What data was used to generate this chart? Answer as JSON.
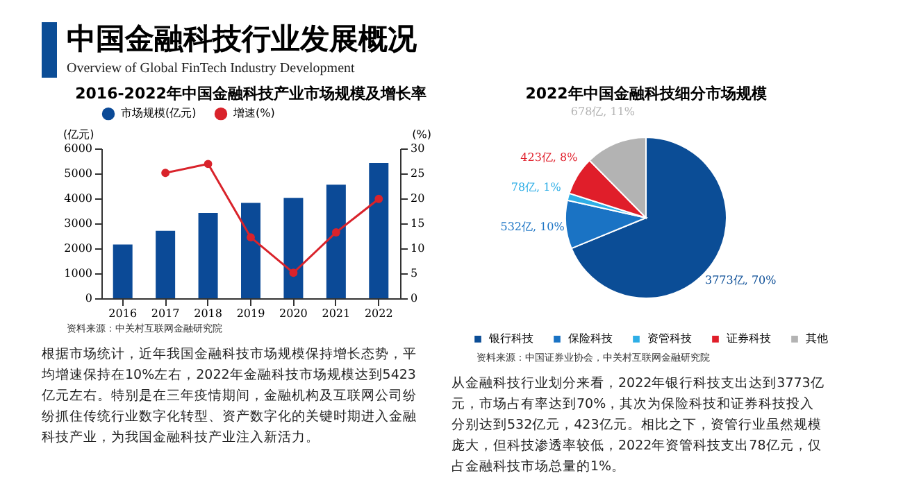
{
  "chart_data": [
    {
      "type": "other",
      "title": "中国金融科技行业发展概况",
      "subtitle": "Overview of Global FinTech Industry Development"
    },
    {
      "type": "bar",
      "title": "2016-2022年中国金融科技产业市场规模及增长率",
      "categories": [
        "2016",
        "2017",
        "2018",
        "2019",
        "2020",
        "2021",
        "2022"
      ],
      "series": [
        {
          "name": "市场规模(亿元)",
          "type": "bar",
          "color": "#0b4a97",
          "values": [
            2150,
            2700,
            3420,
            3820,
            4020,
            4550,
            5420
          ]
        },
        {
          "name": "增速(%)",
          "type": "line",
          "axis": "y2",
          "color": "#d9232b",
          "values": [
            null,
            25.1,
            26.9,
            12.2,
            5.1,
            13.2,
            19.9
          ]
        }
      ],
      "ylabel": "(亿元)",
      "y2label": "(%)",
      "ylim": [
        0,
        6000
      ],
      "yticks": [
        0,
        1000,
        2000,
        3000,
        4000,
        5000,
        6000
      ],
      "y2lim": [
        0,
        30
      ],
      "y2ticks": [
        0,
        5,
        10,
        15,
        20,
        25,
        30
      ],
      "legend": "top",
      "grid": false,
      "marker": "circle",
      "annotations": [
        "资料来源：中关村互联网金融研究院",
        "根据市场统计，近年我国金融科技市场规模保持增长态势，平均增速保持在10%左右，2022年金融科技市场规模达到5423亿元左右。特别是在三年疫情期间，金融机构及互联网公司纷纷抓住传统行业数字化转型、资产数字化的关键时期进入金融科技产业，为我国金融科技产业注入新活力。"
      ]
    },
    {
      "type": "pie",
      "title": "2022年中国金融科技细分市场规模",
      "categories": [
        "银行科技",
        "保险科技",
        "资管科技",
        "证券科技",
        "其他"
      ],
      "values": [
        3773,
        532,
        78,
        423,
        678
      ],
      "colors": [
        "#0b4d96",
        "#1a73c4",
        "#2eaee6",
        "#e01e2a",
        "#b3b3b3"
      ],
      "value_labels": [
        "3773亿, 70%",
        "532亿, 10%",
        "78亿, 1%",
        "423亿, 8%",
        "678亿, 11%"
      ],
      "legend": "bottom",
      "annotations": [
        "资料来源：中国证券业协会，中关村互联网金融研究院",
        "从金融科技行业划分来看，2022年银行科技支出达到3773亿元，市场占有率达到70%，其次为保险科技和证券科技投入分别达到532亿元，423亿元。相比之下，资管行业虽然规模庞大，但科技渗透率较低，2022年资管科技支出78亿元，仅占金融科技市场总量的1%。"
      ]
    }
  ]
}
